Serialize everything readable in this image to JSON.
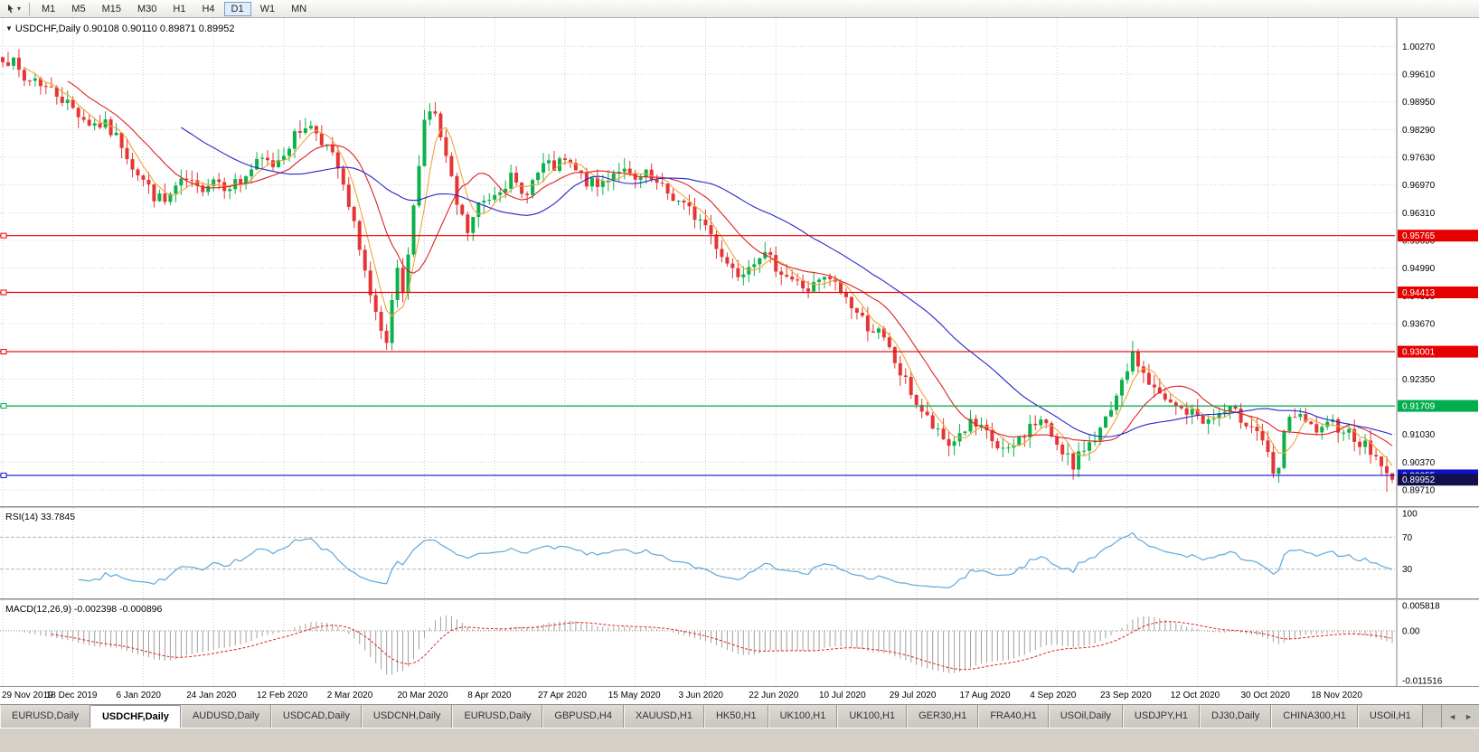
{
  "toolbar": {
    "timeframes": [
      "M1",
      "M5",
      "M15",
      "M30",
      "H1",
      "H4",
      "D1",
      "W1",
      "MN"
    ],
    "active_timeframe": "D1"
  },
  "chart_header": {
    "collapse_icon": "▼",
    "text": "USDCHF,Daily 0.90108 0.90110 0.89871 0.89952"
  },
  "tabs": {
    "items": [
      "EURUSD,Daily",
      "USDCHF,Daily",
      "AUDUSD,Daily",
      "USDCAD,Daily",
      "USDCNH,Daily",
      "EURUSD,Daily",
      "GBPUSD,H4",
      "XAUUSD,H1",
      "HK50,H1",
      "UK100,H1",
      "UK100,H1",
      "GER30,H1",
      "FRA40,H1",
      "USOil,Daily",
      "USDJPY,H1",
      "DJ30,Daily",
      "CHINA300,H1",
      "USOil,H1"
    ],
    "active_index": 1,
    "scroll_left": "◄",
    "scroll_right": "►"
  },
  "chart_data": [
    {
      "type": "candlestick",
      "symbol": "USDCHF",
      "timeframe": "Daily",
      "num_bars": 258,
      "seed": 7,
      "label_step": 13,
      "x_labels": [
        "29 Nov 2019",
        "18 Dec 2019",
        "6 Jan 2020",
        "24 Jan 2020",
        "12 Feb 2020",
        "2 Mar 2020",
        "20 Mar 2020",
        "8 Apr 2020",
        "27 Apr 2020",
        "15 May 2020",
        "3 Jun 2020",
        "22 Jun 2020",
        "10 Jul 2020",
        "29 Jul 2020",
        "17 Aug 2020",
        "4 Sep 2020",
        "23 Sep 2020",
        "12 Oct 2020",
        "30 Oct 2020",
        "18 Nov 2020"
      ],
      "y_ticks": [
        1.0027,
        0.9961,
        0.9895,
        0.9829,
        0.9763,
        0.9697,
        0.9631,
        0.9565,
        0.9499,
        0.9433,
        0.9367,
        0.9301,
        0.9235,
        0.9169,
        0.9103,
        0.9037,
        0.8971
      ],
      "ylim": [
        0.8958,
        1.0086
      ],
      "grid_color": "#cfcfcf",
      "up_color": "#0db14b",
      "down_color": "#e53535",
      "close_anchors": [
        [
          0,
          1.0005
        ],
        [
          2,
          0.9985
        ],
        [
          4,
          0.9945
        ],
        [
          6,
          0.9952
        ],
        [
          8,
          0.993
        ],
        [
          10,
          0.9915
        ],
        [
          13,
          0.988
        ],
        [
          16,
          0.9845
        ],
        [
          19,
          0.9838
        ],
        [
          22,
          0.9795
        ],
        [
          24,
          0.9745
        ],
        [
          26,
          0.9708
        ],
        [
          28,
          0.9672
        ],
        [
          30,
          0.9655
        ],
        [
          32,
          0.969
        ],
        [
          34,
          0.9705
        ],
        [
          36,
          0.9685
        ],
        [
          39,
          0.9715
        ],
        [
          41,
          0.9698
        ],
        [
          44,
          0.9705
        ],
        [
          46,
          0.9735
        ],
        [
          48,
          0.9755
        ],
        [
          50,
          0.9745
        ],
        [
          52,
          0.9778
        ],
        [
          54,
          0.9812
        ],
        [
          56,
          0.9842
        ],
        [
          58,
          0.9825
        ],
        [
          60,
          0.9788
        ],
        [
          62,
          0.9735
        ],
        [
          64,
          0.964
        ],
        [
          66,
          0.9555
        ],
        [
          68,
          0.943
        ],
        [
          70,
          0.9335
        ],
        [
          71,
          0.931
        ],
        [
          72,
          0.942
        ],
        [
          73,
          0.9485
        ],
        [
          74,
          0.9425
        ],
        [
          75,
          0.953
        ],
        [
          76,
          0.9638
        ],
        [
          77,
          0.9758
        ],
        [
          78,
          0.9852
        ],
        [
          79,
          0.9878
        ],
        [
          80,
          0.986
        ],
        [
          82,
          0.9758
        ],
        [
          84,
          0.9648
        ],
        [
          86,
          0.9585
        ],
        [
          88,
          0.9648
        ],
        [
          90,
          0.9668
        ],
        [
          92,
          0.9695
        ],
        [
          94,
          0.9712
        ],
        [
          96,
          0.9672
        ],
        [
          98,
          0.9705
        ],
        [
          100,
          0.9742
        ],
        [
          102,
          0.9738
        ],
        [
          104,
          0.9752
        ],
        [
          106,
          0.9728
        ],
        [
          108,
          0.9705
        ],
        [
          110,
          0.9692
        ],
        [
          112,
          0.9718
        ],
        [
          114,
          0.9738
        ],
        [
          117,
          0.9702
        ],
        [
          119,
          0.9718
        ],
        [
          121,
          0.9695
        ],
        [
          124,
          0.9668
        ],
        [
          127,
          0.9635
        ],
        [
          130,
          0.9602
        ],
        [
          132,
          0.9555
        ],
        [
          134,
          0.9512
        ],
        [
          136,
          0.9488
        ],
        [
          138,
          0.9512
        ],
        [
          140,
          0.9535
        ],
        [
          143,
          0.9505
        ],
        [
          145,
          0.9482
        ],
        [
          147,
          0.9462
        ],
        [
          149,
          0.9448
        ],
        [
          151,
          0.9465
        ],
        [
          153,
          0.9472
        ],
        [
          156,
          0.9428
        ],
        [
          158,
          0.9392
        ],
        [
          160,
          0.9362
        ],
        [
          162,
          0.9345
        ],
        [
          164,
          0.9302
        ],
        [
          166,
          0.9248
        ],
        [
          168,
          0.9205
        ],
        [
          169,
          0.9178
        ],
        [
          171,
          0.9138
        ],
        [
          173,
          0.9102
        ],
        [
          175,
          0.9078
        ],
        [
          177,
          0.9105
        ],
        [
          179,
          0.9128
        ],
        [
          182,
          0.9102
        ],
        [
          184,
          0.9072
        ],
        [
          186,
          0.9058
        ],
        [
          188,
          0.9092
        ],
        [
          190,
          0.9122
        ],
        [
          192,
          0.9135
        ],
        [
          195,
          0.9085
        ],
        [
          197,
          0.9052
        ],
        [
          198,
          0.9012
        ],
        [
          199,
          0.9048
        ],
        [
          201,
          0.9092
        ],
        [
          203,
          0.9112
        ],
        [
          205,
          0.9152
        ],
        [
          207,
          0.9218
        ],
        [
          208,
          0.9262
        ],
        [
          209,
          0.9285
        ],
        [
          210,
          0.9272
        ],
        [
          212,
          0.9225
        ],
        [
          214,
          0.9192
        ],
        [
          216,
          0.9172
        ],
        [
          218,
          0.9162
        ],
        [
          221,
          0.9148
        ],
        [
          223,
          0.9132
        ],
        [
          225,
          0.9152
        ],
        [
          227,
          0.9158
        ],
        [
          229,
          0.9142
        ],
        [
          231,
          0.9128
        ],
        [
          233,
          0.9092
        ],
        [
          234,
          0.9048
        ],
        [
          235,
          0.8998
        ],
        [
          236,
          0.9022
        ],
        [
          237,
          0.9098
        ],
        [
          238,
          0.9152
        ],
        [
          240,
          0.9138
        ],
        [
          242,
          0.9118
        ],
        [
          244,
          0.9108
        ],
        [
          246,
          0.9128
        ],
        [
          248,
          0.9118
        ],
        [
          250,
          0.9098
        ],
        [
          252,
          0.9075
        ],
        [
          254,
          0.9048
        ],
        [
          255,
          0.9035
        ],
        [
          256,
          0.9011
        ],
        [
          257,
          0.8995
        ]
      ],
      "last_bar": {
        "open": 0.90108,
        "high": 0.9011,
        "low": 0.89871,
        "close": 0.89952
      },
      "prev_bar_low": 0.8966,
      "hlines": [
        {
          "value": 0.95765,
          "label": "0.95765",
          "color": "#e60000"
        },
        {
          "value": 0.94413,
          "label": "0.94413",
          "color": "#e60000"
        },
        {
          "value": 0.93001,
          "label": "0.93001",
          "color": "#e60000"
        },
        {
          "value": 0.91709,
          "label": "0.91709",
          "color": "#00ae4d"
        },
        {
          "value": 0.90055,
          "label": "0.90055",
          "color": "#1010d0"
        }
      ],
      "current_price": {
        "value": 0.89952,
        "label": "0.89952",
        "box_color": "#11114e"
      },
      "moving_averages": [
        {
          "name": "fast",
          "period": 5,
          "color": "#f0a43a"
        },
        {
          "name": "medium",
          "period": 13,
          "color": "#dd2222"
        },
        {
          "name": "slow",
          "period": 34,
          "color": "#2626cc"
        }
      ]
    },
    {
      "type": "line",
      "name": "RSI",
      "label": "RSI(14) 33.7845",
      "period": 14,
      "last_value": 33.7845,
      "color": "#5fa8da",
      "levels": [
        70,
        30
      ],
      "y_axis": [
        {
          "value": 100,
          "label": "100"
        },
        {
          "value": 70,
          "label": "70"
        },
        {
          "value": 30,
          "label": "30"
        }
      ]
    },
    {
      "type": "macd",
      "name": "MACD",
      "label": "MACD(12,26,9) -0.002398 -0.000896",
      "params": [
        12,
        26,
        9
      ],
      "last_values": [
        -0.002398,
        -0.000896
      ],
      "ylim": [
        -0.011516,
        0.005818
      ],
      "y_axis_labels": [
        "0.005818",
        "0.00",
        "-0.011516"
      ],
      "histogram_color": "#a0a0a0",
      "signal_color": "#dd2222"
    }
  ]
}
